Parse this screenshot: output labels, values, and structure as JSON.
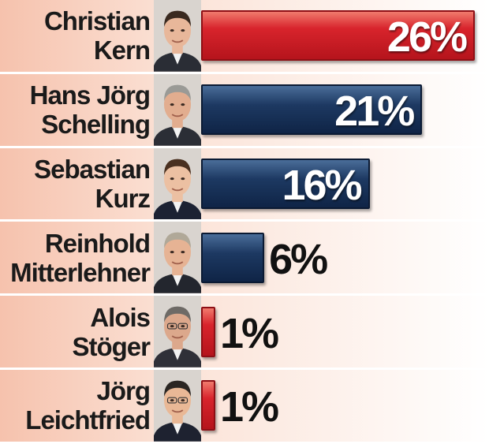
{
  "chart_data": {
    "type": "bar",
    "orientation": "horizontal",
    "categories": [
      [
        "Christian",
        "Kern"
      ],
      [
        "Hans Jörg",
        "Schelling"
      ],
      [
        "Sebastian",
        "Kurz"
      ],
      [
        "Reinhold",
        "Mitterlehner"
      ],
      [
        "Alois",
        "Stöger"
      ],
      [
        "Jörg",
        "Leichtfried"
      ]
    ],
    "values": [
      26,
      21,
      16,
      6,
      1,
      1
    ],
    "value_labels": [
      "26%",
      "21%",
      "16%",
      "6%",
      "1%",
      "1%"
    ],
    "bar_colors": [
      "#d8242c",
      "#1d3962",
      "#1d3962",
      "#1d3962",
      "#d8242c",
      "#d8242c"
    ],
    "title": "",
    "xlabel": "",
    "ylabel": "",
    "grid": false,
    "portraits": [
      "portrait",
      "portrait",
      "portrait",
      "portrait",
      "portrait",
      "portrait"
    ]
  }
}
